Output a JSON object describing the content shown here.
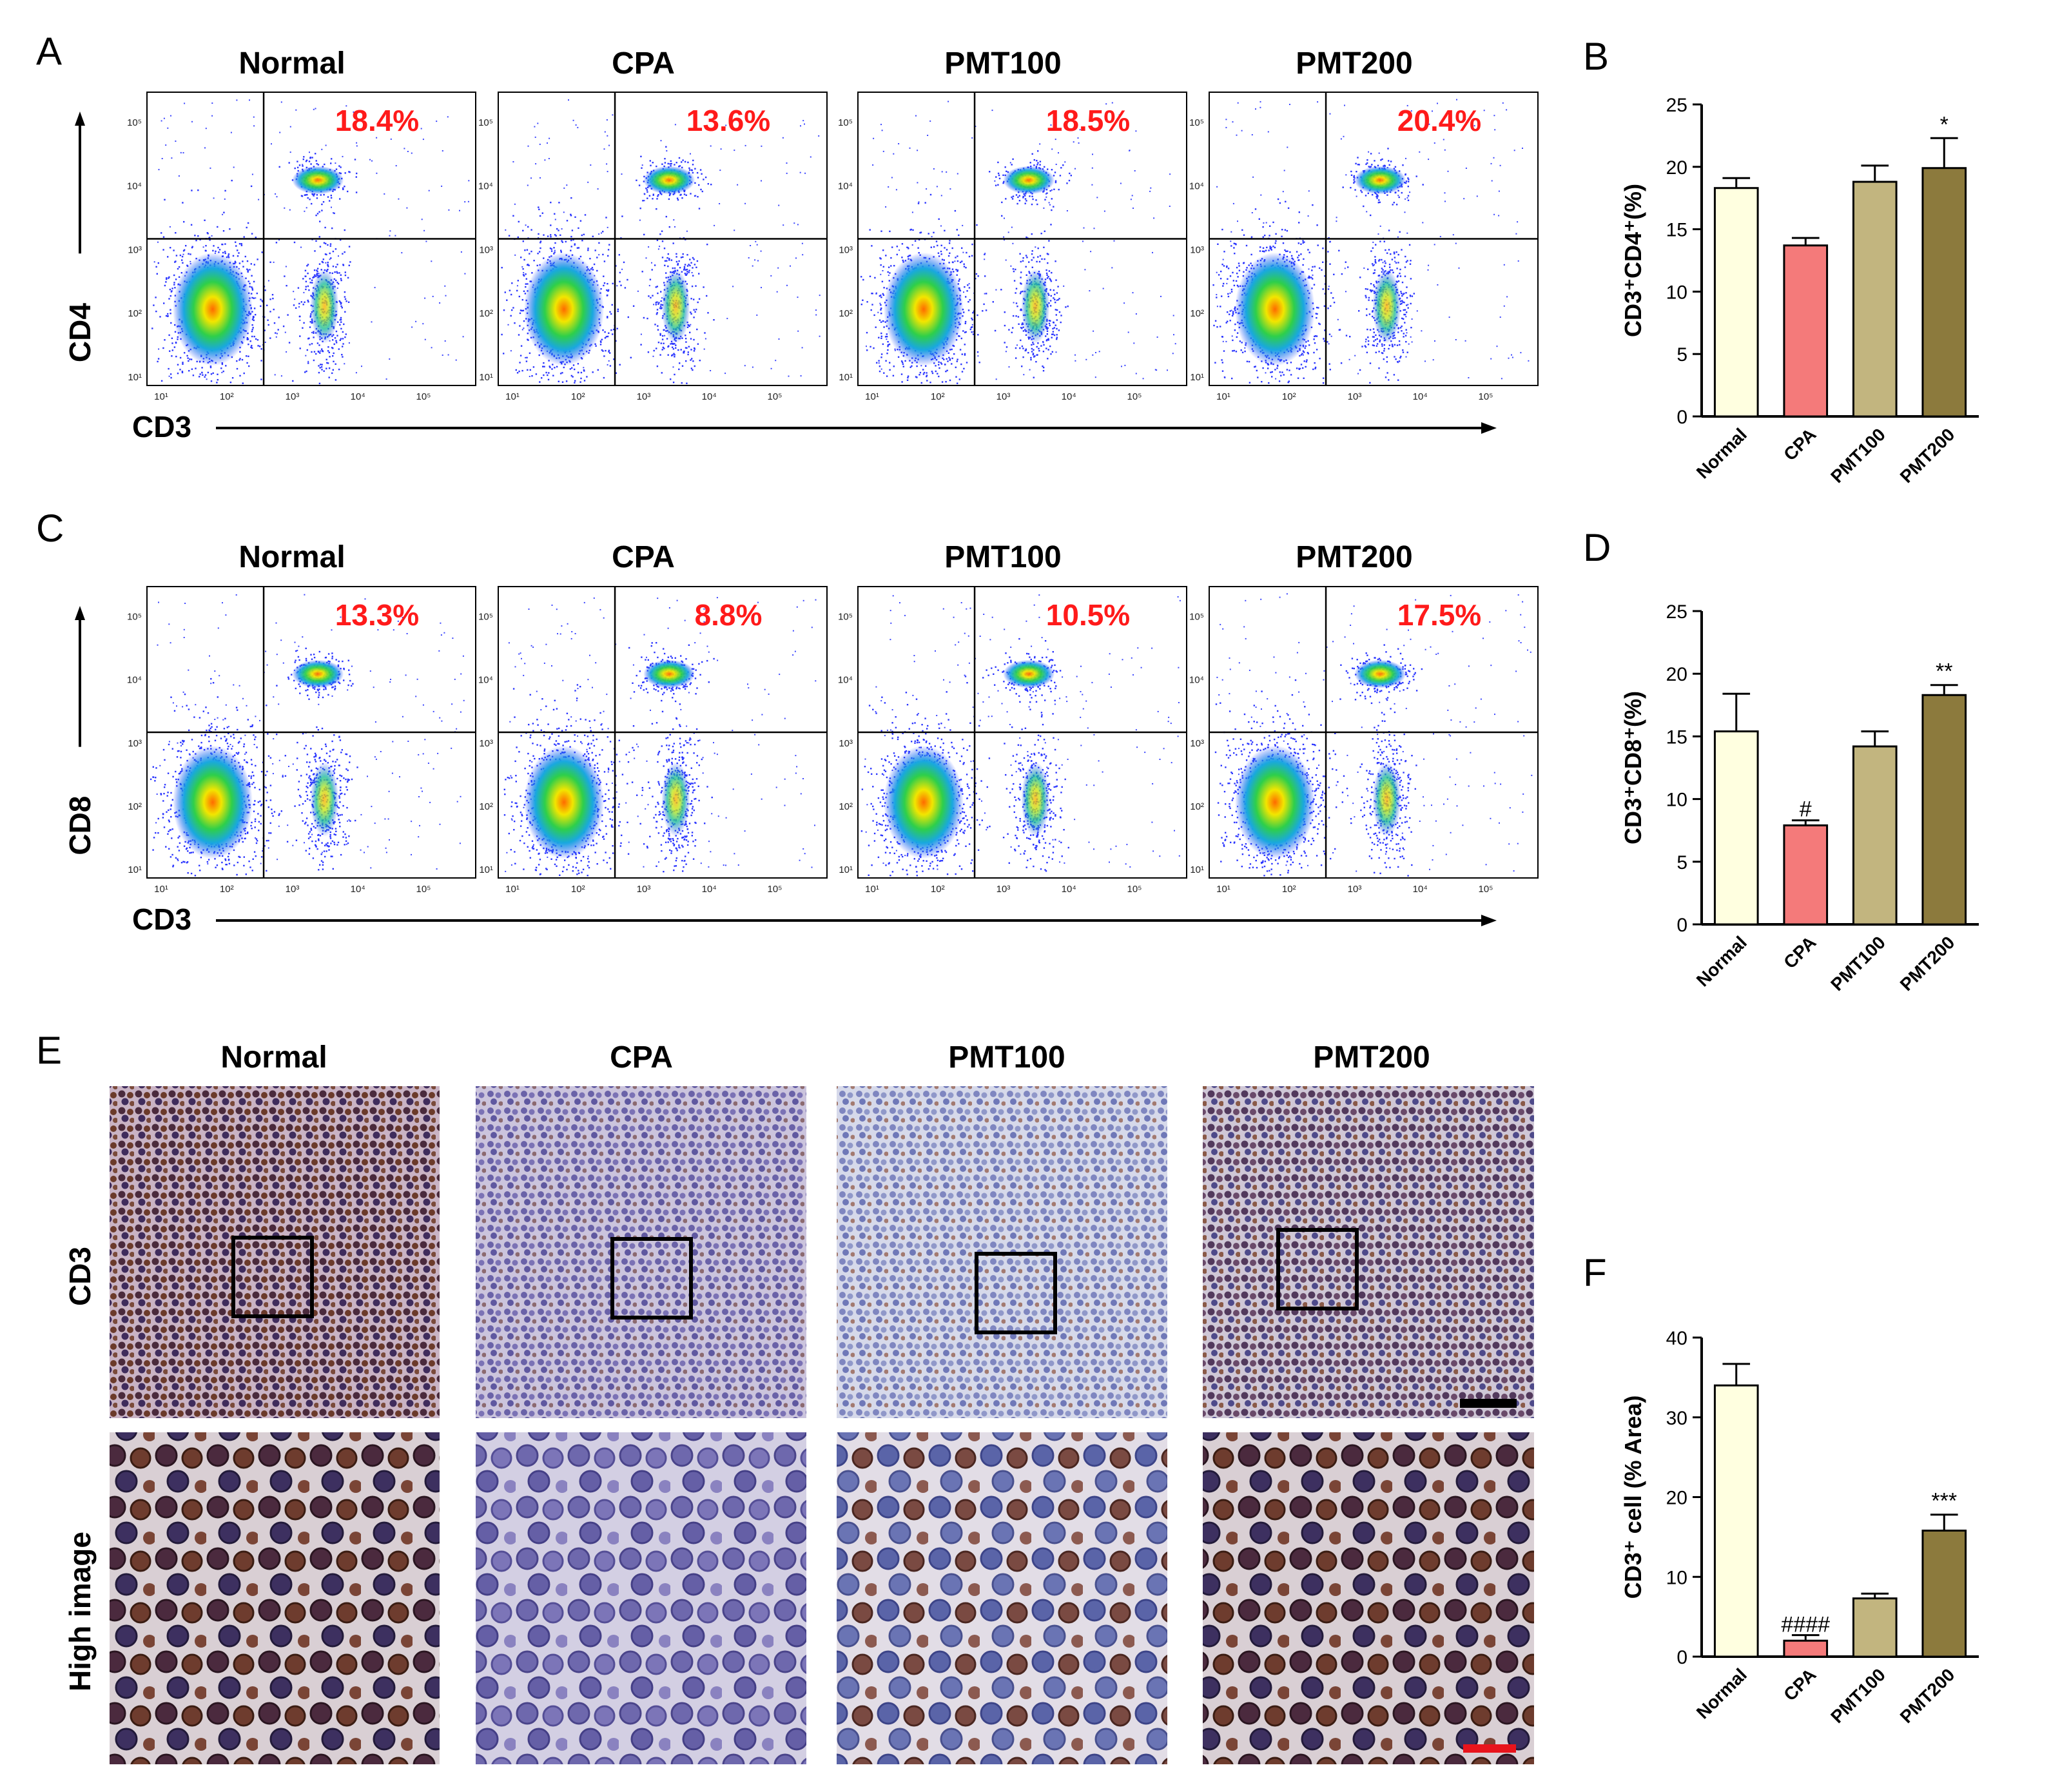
{
  "panels": {
    "A": {
      "letter": "A",
      "y_marker": "CD4",
      "x_marker": "CD3",
      "plots": [
        {
          "title": "Normal",
          "percent": "18.4%"
        },
        {
          "title": "CPA",
          "percent": "13.6%"
        },
        {
          "title": "PMT100",
          "percent": "18.5%"
        },
        {
          "title": "PMT200",
          "percent": "20.4%"
        }
      ],
      "x_ticks": [
        "10¹",
        "10²",
        "10³",
        "10⁴",
        "10⁵"
      ],
      "y_ticks": [
        "10¹",
        "10²",
        "10³",
        "10⁴",
        "10⁵"
      ]
    },
    "C": {
      "letter": "C",
      "y_marker": "CD8",
      "x_marker": "CD3",
      "plots": [
        {
          "title": "Normal",
          "percent": "13.3%"
        },
        {
          "title": "CPA",
          "percent": "8.8%"
        },
        {
          "title": "PMT100",
          "percent": "10.5%"
        },
        {
          "title": "PMT200",
          "percent": "17.5%"
        }
      ],
      "x_ticks": [
        "10¹",
        "10²",
        "10³",
        "10⁴",
        "10⁵"
      ],
      "y_ticks": [
        "10¹",
        "10²",
        "10³",
        "10⁴",
        "10⁵"
      ]
    },
    "E": {
      "letter": "E",
      "titles": [
        "Normal",
        "CPA",
        "PMT100",
        "PMT200"
      ],
      "row_labels": [
        "CD3",
        "High image"
      ]
    }
  },
  "colors": {
    "normal": "#ffffe0",
    "cpa": "#f47a7a",
    "pmt100": "#c2b57f",
    "pmt200": "#8c7a3d",
    "pct_red": "#ff1a1a",
    "black_scale": "#000000",
    "red_scale": "#e8141c"
  },
  "chart_data": [
    {
      "id": "B",
      "letter": "B",
      "type": "bar",
      "ylabel": "CD3⁺CD4⁺(%)",
      "categories": [
        "Normal",
        "CPA",
        "PMT100",
        "PMT200"
      ],
      "values": [
        18.3,
        13.7,
        18.8,
        19.9
      ],
      "errors": [
        0.8,
        0.6,
        1.3,
        2.4
      ],
      "significance": [
        "",
        "",
        "",
        "*"
      ],
      "ylim": [
        0,
        25
      ],
      "yticks": [
        0,
        5,
        10,
        15,
        20,
        25
      ]
    },
    {
      "id": "D",
      "letter": "D",
      "type": "bar",
      "ylabel": "CD3⁺CD8⁺(%)",
      "categories": [
        "Normal",
        "CPA",
        "PMT100",
        "PMT200"
      ],
      "values": [
        15.4,
        7.9,
        14.2,
        18.3
      ],
      "errors": [
        3.0,
        0.4,
        1.2,
        0.8
      ],
      "significance": [
        "",
        "#",
        "",
        "**"
      ],
      "ylim": [
        0,
        25
      ],
      "yticks": [
        0,
        5,
        10,
        15,
        20,
        25
      ]
    },
    {
      "id": "F",
      "letter": "F",
      "type": "bar",
      "ylabel": "CD3⁺ cell (% Area)",
      "categories": [
        "Normal",
        "CPA",
        "PMT100",
        "PMT200"
      ],
      "values": [
        34.0,
        2.0,
        7.3,
        15.8
      ],
      "errors": [
        2.7,
        0.7,
        0.6,
        2.0
      ],
      "significance": [
        "",
        "####",
        "",
        "***"
      ],
      "ylim": [
        0,
        40
      ],
      "yticks": [
        0,
        10,
        20,
        30,
        40
      ]
    }
  ]
}
